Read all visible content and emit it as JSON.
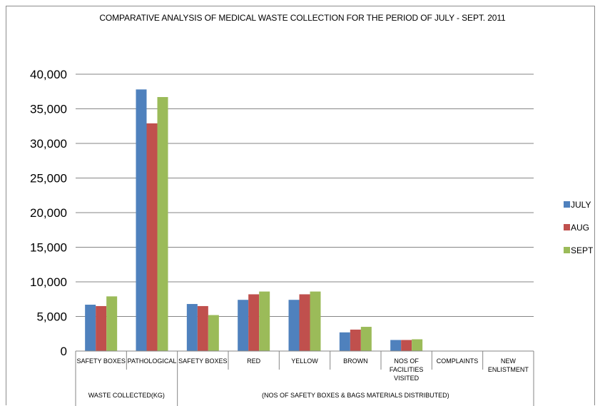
{
  "chart_data": {
    "type": "bar",
    "title": "COMPARATIVE ANALYSIS OF MEDICAL WASTE COLLECTION FOR THE PERIOD OF JULY - SEPT. 2011",
    "categories": [
      "SAFETY BOXES",
      "PATHOLOGICAL",
      "SAFETY BOXES",
      "RED",
      "YELLOW",
      "BROWN",
      "NOS OF FACILITIES VISITED",
      "COMPLAINTS",
      "NEW ENLISTMENT"
    ],
    "category_lines": [
      [
        "SAFETY BOXES"
      ],
      [
        "PATHOLOGICAL"
      ],
      [
        "SAFETY BOXES"
      ],
      [
        "RED"
      ],
      [
        "YELLOW"
      ],
      [
        "BROWN"
      ],
      [
        "NOS OF",
        "FACILITIES",
        "VISITED"
      ],
      [
        "COMPLAINTS"
      ],
      [
        "NEW",
        "ENLISTMENT"
      ]
    ],
    "groups": [
      {
        "label": "WASTE COLLECTED(KG)",
        "span": 2
      },
      {
        "label": "(NOS OF SAFETY BOXES & BAGS MATERIALS DISTRIBUTED)",
        "span": 7
      }
    ],
    "series": [
      {
        "name": "JULY",
        "color": "#4F81BD",
        "values": [
          6700,
          37800,
          6800,
          7400,
          7400,
          2700,
          1600,
          0,
          0
        ]
      },
      {
        "name": "AUG",
        "color": "#C0504D",
        "values": [
          6500,
          32900,
          6500,
          8200,
          8200,
          3100,
          1600,
          0,
          0
        ]
      },
      {
        "name": "SEPT",
        "color": "#9BBB59",
        "values": [
          7900,
          36700,
          5200,
          8600,
          8600,
          3500,
          1700,
          0,
          0
        ]
      }
    ],
    "ylim": [
      0,
      40000
    ],
    "yticks": [
      0,
      5000,
      10000,
      15000,
      20000,
      25000,
      30000,
      35000,
      40000
    ],
    "ytick_labels": [
      "0",
      "5,000",
      "10,000",
      "15,000",
      "20,000",
      "25,000",
      "30,000",
      "35,000",
      "40,000"
    ],
    "grid": true,
    "legend_position": "right"
  }
}
